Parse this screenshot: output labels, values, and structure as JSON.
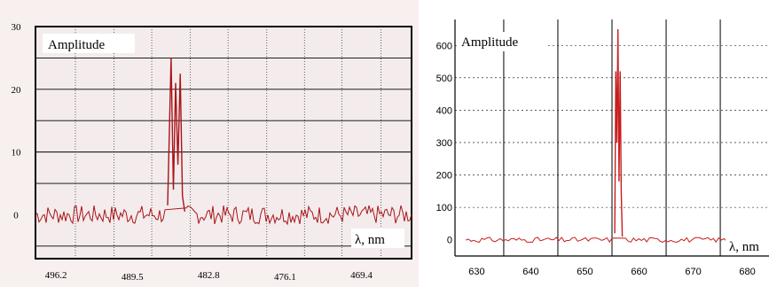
{
  "chart_data": [
    {
      "type": "line",
      "title": "",
      "ylabel": "Amplitude",
      "xlabel": "λ, nm",
      "x_direction": "decreasing",
      "xlim": [
        498.0,
        465.0
      ],
      "ylim": [
        -7,
        30
      ],
      "yticks": [
        0,
        10,
        20,
        30
      ],
      "xticks": [
        496.2,
        489.5,
        482.8,
        476.1,
        469.4
      ],
      "colors": {
        "line": "#a8141a",
        "panel_bg": "#f4ecec",
        "grid": "#000000"
      },
      "grid": true,
      "series": [
        {
          "x": [
            486.4,
            486.1,
            485.9,
            485.7,
            485.5,
            485.3,
            485.1,
            484.9
          ],
          "y": [
            1.5,
            25.0,
            4.0,
            21.0,
            8.0,
            22.5,
            3.0,
            0.5
          ]
        }
      ],
      "baseline": {
        "value": 0,
        "noise_amplitude": 1.5,
        "range": [
          498.0,
          465.0
        ]
      }
    },
    {
      "type": "line",
      "title": "",
      "ylabel": "Amplitude",
      "xlabel": "λ, nm",
      "x_direction": "increasing",
      "xlim": [
        626,
        684
      ],
      "ylim": [
        -50,
        680
      ],
      "yticks": [
        0,
        100,
        200,
        300,
        400,
        500,
        600
      ],
      "xticks": [
        630,
        640,
        650,
        660,
        670,
        680
      ],
      "colors": {
        "line": "#c81e1e",
        "panel_bg": "#ffffff",
        "grid": "#000000"
      },
      "grid": true,
      "series": [
        {
          "x": [
            655.5,
            655.7,
            655.9,
            656.1,
            656.3,
            656.5,
            656.7,
            656.9
          ],
          "y": [
            20,
            520,
            300,
            650,
            180,
            520,
            150,
            10
          ]
        }
      ],
      "baseline": {
        "value": 0,
        "noise_amplitude": 8,
        "range": [
          626,
          684
        ]
      }
    }
  ]
}
